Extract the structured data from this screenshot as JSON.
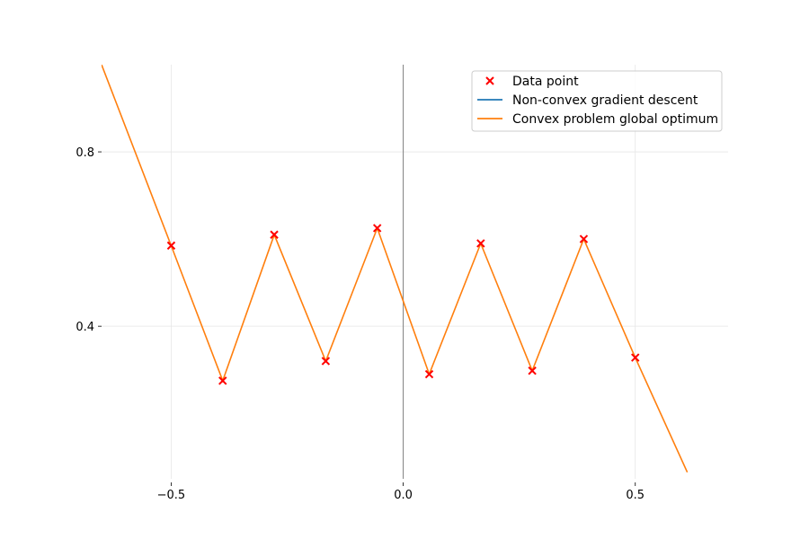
{
  "chart_data": {
    "type": "line",
    "title": "",
    "xlabel": "",
    "ylabel": "",
    "xlim": [
      -0.65,
      0.7
    ],
    "ylim": [
      0.05,
      1.0
    ],
    "x_ticks": [
      -0.5,
      0.0,
      0.5
    ],
    "x_tick_labels": [
      "−0.5",
      "0.0",
      "0.5"
    ],
    "y_ticks": [
      0.4,
      0.8
    ],
    "y_tick_labels": [
      "0.4",
      "0.8"
    ],
    "grid": true,
    "zero_line_x": 0.0,
    "legend_position": "top-right",
    "series": [
      {
        "name": "Data point",
        "kind": "scatter",
        "marker": "x",
        "color": "#ff0000",
        "x": [
          -0.5,
          -0.389,
          -0.278,
          -0.167,
          -0.056,
          0.056,
          0.167,
          0.278,
          0.389,
          0.5
        ],
        "y": [
          0.585,
          0.275,
          0.61,
          0.32,
          0.625,
          0.29,
          0.59,
          0.298,
          0.6,
          0.328
        ]
      },
      {
        "name": "Non-convex gradient descent",
        "kind": "line",
        "color": "#1f77b4",
        "x": [],
        "y": []
      },
      {
        "name": "Convex problem global optimum",
        "kind": "line",
        "color": "#ff7f0e",
        "x": [
          -0.65,
          -0.5,
          -0.389,
          -0.278,
          -0.167,
          -0.056,
          0.056,
          0.167,
          0.278,
          0.389,
          0.5,
          0.612
        ],
        "y": [
          1.0,
          0.585,
          0.275,
          0.61,
          0.32,
          0.625,
          0.29,
          0.59,
          0.298,
          0.6,
          0.328,
          0.065
        ]
      }
    ]
  }
}
